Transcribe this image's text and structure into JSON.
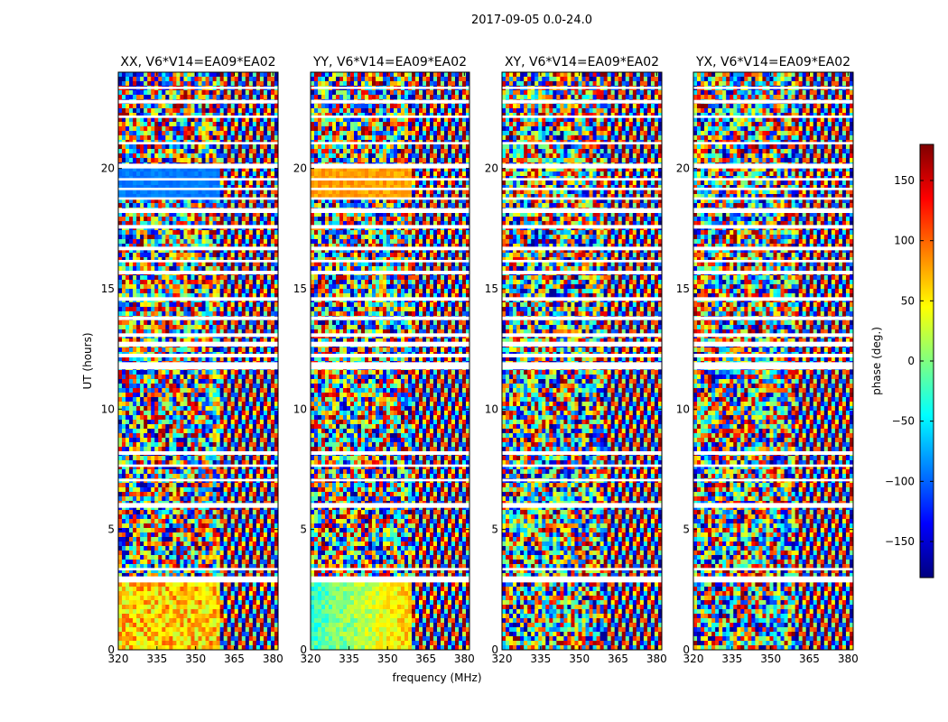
{
  "figure": {
    "suptitle": "2017-09-05 0.0-24.0",
    "xlabel": "frequency (MHz)",
    "ylabel": "UT (hours)"
  },
  "colorbar": {
    "label": "phase (deg.)",
    "range": [
      -180,
      180
    ],
    "ticks": [
      -150,
      -100,
      -50,
      0,
      50,
      100,
      150
    ],
    "tick_labels": [
      "−150",
      "−100",
      "−50",
      "0",
      "50",
      "100",
      "150"
    ],
    "colormap": "jet",
    "stops": [
      "#00007f",
      "#0000ff",
      "#0080ff",
      "#00ffff",
      "#80ff80",
      "#ffff00",
      "#ff8000",
      "#ff0000",
      "#7f0000"
    ]
  },
  "chart_data": [
    {
      "type": "heatmap",
      "title": "XX, V6*V14=EA09*EA02",
      "xlim": [
        320,
        382
      ],
      "ylim": [
        0,
        24
      ],
      "x_ticks": [
        320,
        335,
        350,
        365,
        380
      ],
      "x_tick_labels": [
        "320",
        "335",
        "350",
        "365",
        "380"
      ],
      "y_ticks": [
        0,
        5,
        10,
        15,
        20
      ],
      "y_tick_labels": [
        "0",
        "5",
        "10",
        "15",
        "20"
      ],
      "value_label": "phase (deg.)"
    },
    {
      "type": "heatmap",
      "title": "YY, V6*V14=EA09*EA02",
      "xlim": [
        320,
        382
      ],
      "ylim": [
        0,
        24
      ],
      "x_ticks": [
        320,
        335,
        350,
        365,
        380
      ],
      "x_tick_labels": [
        "320",
        "335",
        "350",
        "365",
        "380"
      ],
      "y_ticks": [
        0,
        5,
        10,
        15,
        20
      ],
      "y_tick_labels": [
        "0",
        "5",
        "10",
        "15",
        "20"
      ],
      "value_label": "phase (deg.)"
    },
    {
      "type": "heatmap",
      "title": "XY, V6*V14=EA09*EA02",
      "xlim": [
        320,
        382
      ],
      "ylim": [
        0,
        24
      ],
      "x_ticks": [
        320,
        335,
        350,
        365,
        380
      ],
      "x_tick_labels": [
        "320",
        "335",
        "350",
        "365",
        "380"
      ],
      "y_ticks": [
        0,
        5,
        10,
        15,
        20
      ],
      "y_tick_labels": [
        "0",
        "5",
        "10",
        "15",
        "20"
      ],
      "value_label": "phase (deg.)"
    },
    {
      "type": "heatmap",
      "title": "YX, V6*V14=EA09*EA02",
      "xlim": [
        320,
        382
      ],
      "ylim": [
        0,
        24
      ],
      "x_ticks": [
        320,
        335,
        350,
        365,
        380
      ],
      "x_tick_labels": [
        "320",
        "335",
        "350",
        "365",
        "380"
      ],
      "y_ticks": [
        0,
        5,
        10,
        15,
        20
      ],
      "y_tick_labels": [
        "0",
        "5",
        "10",
        "15",
        "20"
      ],
      "value_label": "phase (deg.)"
    }
  ]
}
